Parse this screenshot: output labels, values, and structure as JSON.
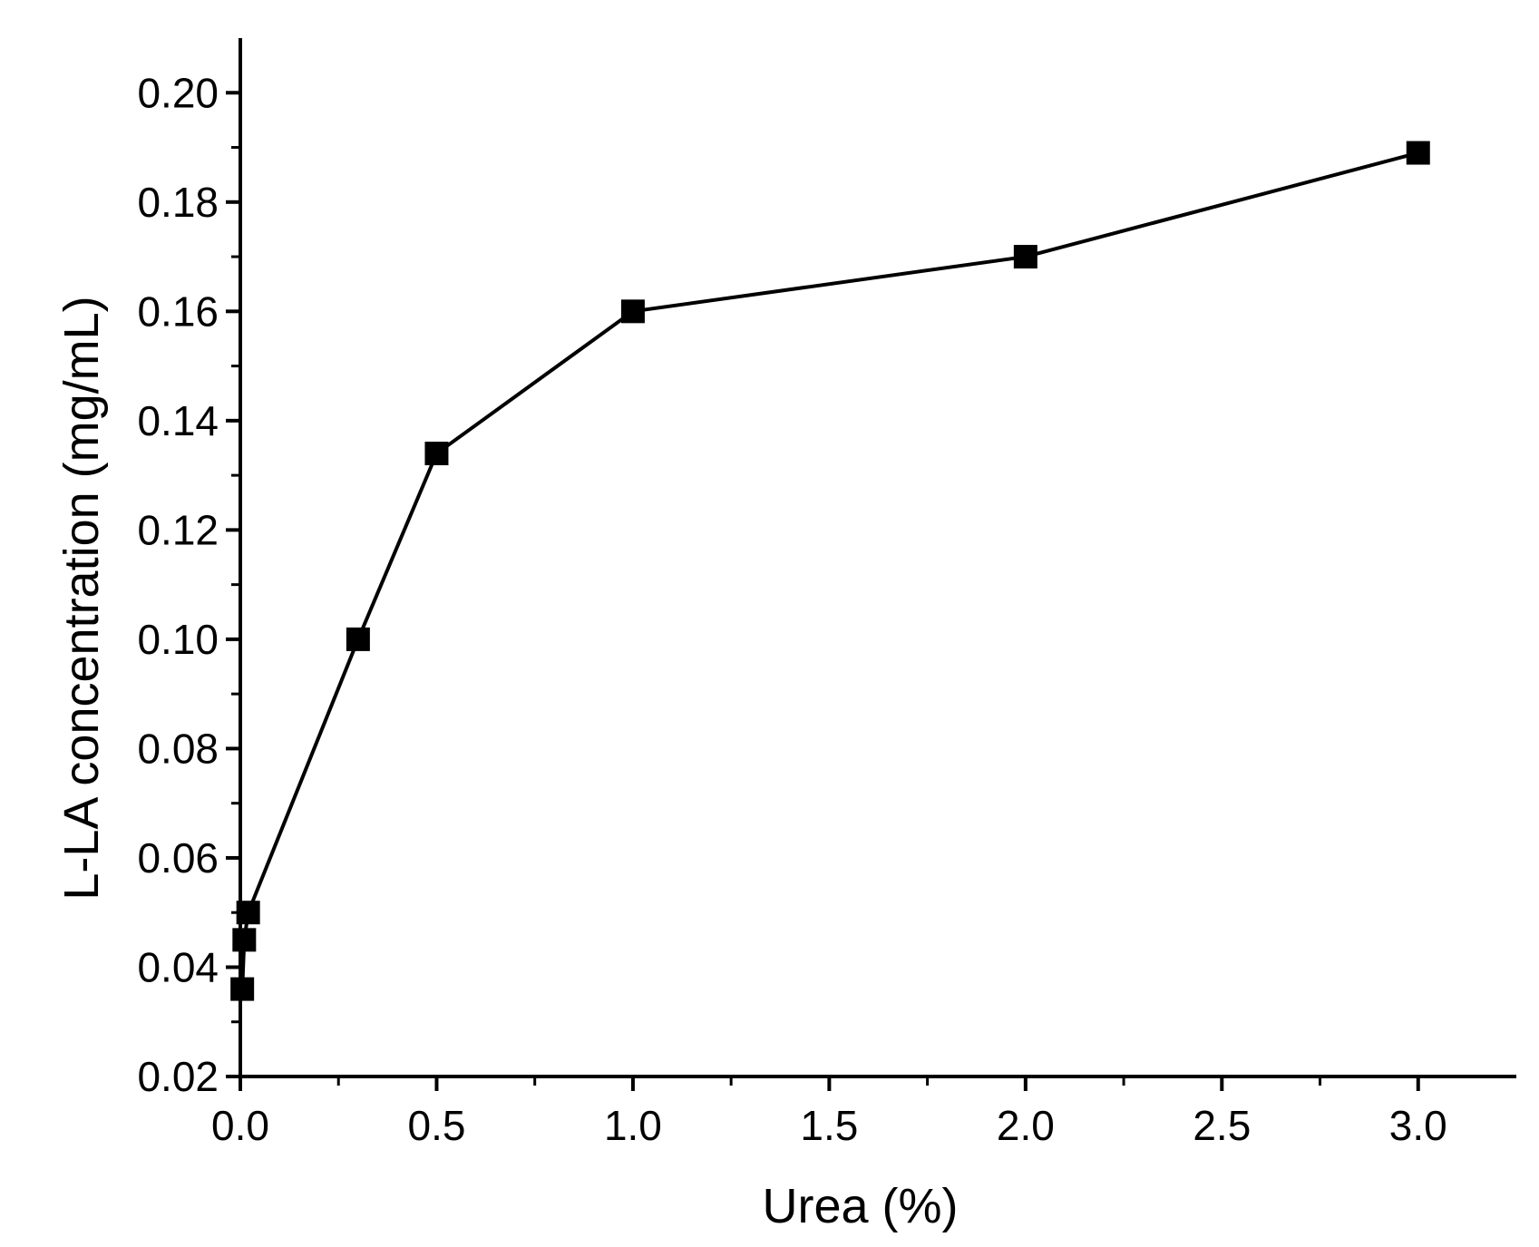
{
  "chart_data": {
    "type": "line",
    "xlabel": "Urea (%)",
    "ylabel": "L-LA concentration (mg/mL)",
    "xlim": [
      0,
      3.25
    ],
    "ylim": [
      0.02,
      0.21
    ],
    "xticks": [
      "0.0",
      "0.5",
      "1.0",
      "1.5",
      "2.0",
      "2.5",
      "3.0"
    ],
    "yticks": [
      "0.02",
      "0.04",
      "0.06",
      "0.08",
      "0.10",
      "0.12",
      "0.14",
      "0.16",
      "0.18",
      "0.20"
    ],
    "grid": false,
    "marker": "square",
    "series": [
      {
        "x": [
          0.005,
          0.01,
          0.02,
          0.3,
          0.5,
          1.0,
          2.0,
          3.0
        ],
        "y": [
          0.036,
          0.045,
          0.05,
          0.1,
          0.134,
          0.16,
          0.17,
          0.189
        ]
      }
    ]
  }
}
